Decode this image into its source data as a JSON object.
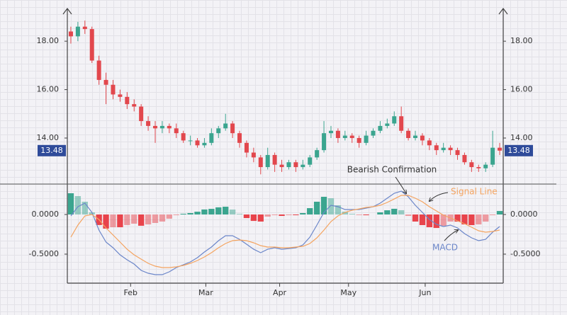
{
  "chart_data": [
    {
      "type": "candlestick",
      "up_color": "#3ba58f",
      "down_color": "#e2474d",
      "xlim": [
        0,
        62
      ],
      "ylim": [
        12.1,
        19.35
      ],
      "yticks": [
        {
          "value": 14,
          "label": "14.00"
        },
        {
          "value": 16,
          "label": "16.00"
        },
        {
          "value": 18,
          "label": "18.00"
        }
      ],
      "last_price_color": "#2f4b9a",
      "open": [
        18.4,
        18.2,
        18.6,
        18.5,
        17.2,
        16.4,
        16.2,
        15.8,
        15.7,
        15.4,
        15.3,
        14.7,
        14.5,
        14.4,
        14.5,
        14.4,
        14.2,
        13.9,
        13.9,
        13.7,
        13.8,
        14.2,
        14.4,
        14.6,
        14.2,
        13.8,
        13.4,
        13.2,
        12.8,
        13.3,
        12.9,
        12.8,
        13.0,
        12.8,
        12.9,
        13.2,
        13.5,
        14.2,
        14.3,
        14.0,
        14.1,
        14.0,
        13.8,
        14.1,
        14.3,
        14.5,
        14.6,
        14.9,
        14.3,
        14.0,
        14.1,
        13.9,
        13.7,
        13.5,
        13.6,
        13.5,
        13.3,
        13.0,
        12.8,
        12.75,
        12.9,
        13.6
      ],
      "high": [
        18.6,
        18.8,
        18.85,
        18.6,
        17.4,
        16.7,
        16.4,
        16.0,
        15.9,
        15.6,
        15.4,
        14.9,
        14.7,
        14.7,
        14.6,
        14.6,
        14.3,
        14.1,
        14.0,
        14.0,
        14.4,
        14.5,
        15.0,
        14.7,
        14.3,
        13.9,
        13.6,
        13.3,
        13.6,
        13.4,
        13.1,
        13.1,
        13.1,
        13.1,
        13.3,
        13.6,
        14.7,
        14.5,
        14.4,
        14.3,
        14.2,
        14.1,
        14.3,
        14.4,
        14.7,
        14.8,
        15.1,
        15.3,
        14.4,
        14.3,
        14.2,
        14.0,
        13.8,
        13.8,
        13.7,
        13.6,
        13.4,
        13.1,
        12.9,
        13.0,
        14.3,
        13.8
      ],
      "low": [
        17.9,
        18.0,
        18.3,
        17.1,
        16.2,
        15.4,
        15.6,
        15.5,
        15.2,
        15.1,
        14.5,
        14.3,
        13.8,
        14.2,
        14.2,
        14.0,
        13.8,
        13.7,
        13.6,
        13.6,
        13.7,
        14.0,
        14.3,
        14.0,
        13.6,
        13.2,
        13.0,
        12.5,
        12.7,
        12.6,
        12.6,
        12.7,
        12.6,
        12.7,
        12.8,
        13.1,
        13.4,
        14.0,
        13.8,
        13.9,
        13.8,
        13.6,
        13.7,
        14.0,
        14.2,
        14.4,
        14.5,
        14.2,
        13.9,
        13.9,
        13.7,
        13.5,
        13.3,
        13.4,
        13.3,
        13.1,
        12.9,
        12.6,
        12.6,
        12.6,
        12.8,
        13.3
      ],
      "close": [
        18.2,
        18.6,
        18.5,
        17.2,
        16.4,
        16.2,
        15.8,
        15.7,
        15.4,
        15.3,
        14.7,
        14.5,
        14.4,
        14.5,
        14.4,
        14.2,
        13.9,
        13.9,
        13.7,
        13.8,
        14.2,
        14.4,
        14.6,
        14.2,
        13.8,
        13.4,
        13.2,
        12.8,
        13.3,
        12.9,
        12.8,
        13.0,
        12.8,
        12.9,
        13.2,
        13.5,
        14.2,
        14.3,
        14.0,
        14.1,
        14.0,
        13.8,
        14.1,
        14.3,
        14.5,
        14.6,
        14.9,
        14.3,
        14.0,
        14.1,
        13.9,
        13.7,
        13.5,
        13.6,
        13.5,
        13.3,
        13.0,
        12.8,
        12.75,
        12.9,
        13.6,
        13.48
      ]
    },
    {
      "type": "macd",
      "xlim": [
        0,
        62
      ],
      "xticks": [
        {
          "value": 9,
          "label": "Feb"
        },
        {
          "value": 19.7,
          "label": "Mar"
        },
        {
          "value": 30.2,
          "label": "Apr"
        },
        {
          "value": 40,
          "label": "May"
        },
        {
          "value": 50.9,
          "label": "Jun"
        }
      ],
      "ylim": [
        -0.866,
        0.384
      ],
      "yticks": [
        {
          "value": -0.5,
          "label": "-0.5000"
        },
        {
          "value": 0,
          "label": "0.0000"
        }
      ],
      "annotation": "Bearish Confirmation",
      "histogram": {
        "up_color": "#3ba58f",
        "down_color": "#e8434b",
        "values": [
          0.268,
          0.232,
          0.161,
          0.027,
          -0.133,
          -0.178,
          -0.161,
          -0.161,
          -0.133,
          -0.116,
          -0.142,
          -0.125,
          -0.107,
          -0.089,
          -0.053,
          -0.009,
          0.009,
          0.018,
          0.035,
          0.063,
          0.071,
          0.09,
          0.098,
          0.062,
          0.008,
          -0.045,
          -0.081,
          -0.089,
          -0.027,
          -0.009,
          -0.018,
          -0.009,
          -0.009,
          0.018,
          0.08,
          0.161,
          0.223,
          0.205,
          0.116,
          0.036,
          0.009,
          -0.008,
          -0.009,
          0,
          0.027,
          0.053,
          0.072,
          0.054,
          -0.018,
          -0.089,
          -0.134,
          -0.161,
          -0.17,
          -0.143,
          -0.089,
          -0.09,
          -0.125,
          -0.134,
          -0.125,
          -0.09,
          -0.009,
          0.044
        ]
      },
      "series": [
        {
          "name": "MACD",
          "color": "#6b86c9",
          "values": [
            -0.018,
            0.098,
            0.143,
            0.027,
            -0.196,
            -0.348,
            -0.42,
            -0.509,
            -0.571,
            -0.625,
            -0.705,
            -0.741,
            -0.759,
            -0.759,
            -0.723,
            -0.67,
            -0.634,
            -0.598,
            -0.545,
            -0.473,
            -0.411,
            -0.33,
            -0.268,
            -0.268,
            -0.313,
            -0.375,
            -0.438,
            -0.482,
            -0.438,
            -0.42,
            -0.438,
            -0.429,
            -0.42,
            -0.384,
            -0.286,
            -0.134,
            0.027,
            0.116,
            0.098,
            0.063,
            0.063,
            0.063,
            0.08,
            0.098,
            0.143,
            0.205,
            0.268,
            0.295,
            0.223,
            0.116,
            0.027,
            -0.063,
            -0.125,
            -0.152,
            -0.134,
            -0.17,
            -0.241,
            -0.295,
            -0.33,
            -0.313,
            -0.223,
            -0.152
          ]
        },
        {
          "name": "Signal Line",
          "color": "#f4a460",
          "values": [
            -0.286,
            -0.134,
            -0.018,
            0,
            -0.063,
            -0.17,
            -0.259,
            -0.348,
            -0.438,
            -0.509,
            -0.563,
            -0.616,
            -0.652,
            -0.67,
            -0.67,
            -0.661,
            -0.643,
            -0.616,
            -0.58,
            -0.536,
            -0.482,
            -0.42,
            -0.366,
            -0.33,
            -0.321,
            -0.33,
            -0.357,
            -0.393,
            -0.411,
            -0.411,
            -0.42,
            -0.42,
            -0.411,
            -0.402,
            -0.366,
            -0.295,
            -0.196,
            -0.089,
            -0.018,
            0.027,
            0.054,
            0.071,
            0.089,
            0.098,
            0.116,
            0.152,
            0.196,
            0.241,
            0.241,
            0.205,
            0.161,
            0.098,
            0.045,
            -0.009,
            -0.045,
            -0.08,
            -0.116,
            -0.161,
            -0.205,
            -0.223,
            -0.214,
            -0.196
          ]
        }
      ]
    }
  ]
}
